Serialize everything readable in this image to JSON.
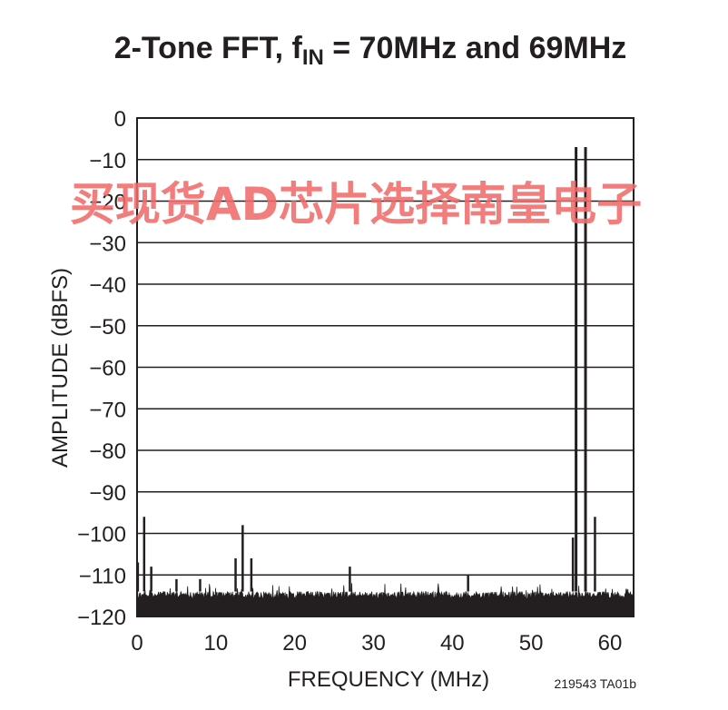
{
  "chart_data": {
    "type": "line",
    "title_main": "2-Tone FFT, f",
    "title_sub": "IN",
    "title_rest": " = 70MHz and 69MHz",
    "xlabel": "FREQUENCY (MHz)",
    "ylabel": "AMPLITUDE (dBFS)",
    "xlim": [
      0,
      63
    ],
    "ylim": [
      -120,
      0
    ],
    "x_ticks": [
      0,
      10,
      20,
      30,
      40,
      50,
      60
    ],
    "y_ticks": [
      0,
      -10,
      -20,
      -30,
      -40,
      -50,
      -60,
      -70,
      -80,
      -90,
      -100,
      -110,
      -120
    ],
    "grid": true,
    "noise_floor": -114,
    "peaks": [
      {
        "x": 0.1,
        "y": -107
      },
      {
        "x": 0.9,
        "y": -96
      },
      {
        "x": 1.8,
        "y": -108
      },
      {
        "x": 5,
        "y": -111
      },
      {
        "x": 8,
        "y": -111
      },
      {
        "x": 12.5,
        "y": -106
      },
      {
        "x": 13.4,
        "y": -98
      },
      {
        "x": 14.5,
        "y": -106
      },
      {
        "x": 27,
        "y": -108
      },
      {
        "x": 42,
        "y": -110
      },
      {
        "x": 55.3,
        "y": -101
      },
      {
        "x": 55.7,
        "y": -7
      },
      {
        "x": 56.9,
        "y": -7
      },
      {
        "x": 58.1,
        "y": -96
      }
    ],
    "figure_id": "219543 TA01b"
  },
  "watermark": "买现货AD芯片选择南皇电子"
}
